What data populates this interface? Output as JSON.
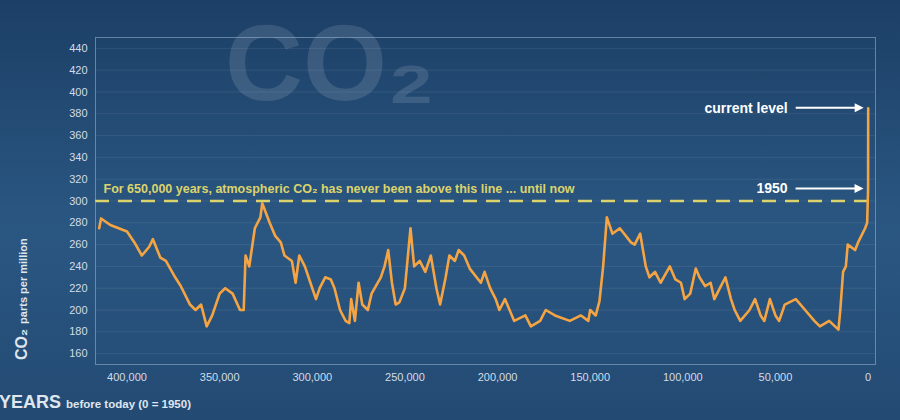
{
  "chart_data": {
    "type": "line",
    "title": "CO₂",
    "x_label": "YEARS before today (0 = 1950)",
    "y_label": "CO₂ parts per million",
    "color": "#f5a443",
    "line_style": "solid",
    "grid": true,
    "xlim": [
      417000,
      -4000
    ],
    "ylim": [
      150,
      450
    ],
    "xticks": [
      {
        "value": 400000,
        "label": "400,000"
      },
      {
        "value": 350000,
        "label": "350,000"
      },
      {
        "value": 300000,
        "label": "300,000"
      },
      {
        "value": 250000,
        "label": "250,000"
      },
      {
        "value": 200000,
        "label": "200,000"
      },
      {
        "value": 150000,
        "label": "150,000"
      },
      {
        "value": 100000,
        "label": "100,000"
      },
      {
        "value": 50000,
        "label": "50,000"
      },
      0
    ],
    "yticks": [
      160,
      180,
      200,
      220,
      240,
      260,
      280,
      300,
      320,
      340,
      360,
      380,
      400,
      420,
      440
    ],
    "x": [
      415000,
      414000,
      409000,
      400000,
      396000,
      392000,
      388000,
      386000,
      382000,
      379000,
      374000,
      371000,
      366000,
      363000,
      360000,
      357000,
      354000,
      350000,
      347000,
      343000,
      339000,
      337000,
      336000,
      334000,
      331000,
      328000,
      327000,
      323000,
      320000,
      317000,
      315000,
      311000,
      309000,
      307000,
      304000,
      301000,
      298000,
      296000,
      293000,
      290000,
      288000,
      285000,
      282000,
      280000,
      279000,
      277000,
      275000,
      273000,
      270000,
      268000,
      263000,
      261000,
      259000,
      257000,
      255000,
      253000,
      250000,
      247000,
      245000,
      242000,
      239000,
      236000,
      233000,
      231000,
      228000,
      226000,
      223000,
      221000,
      218000,
      215000,
      209000,
      207000,
      204000,
      201000,
      199000,
      196000,
      191000,
      185000,
      182000,
      177000,
      174000,
      169000,
      161000,
      155000,
      151000,
      150000,
      147000,
      145000,
      143000,
      141000,
      138000,
      134000,
      128000,
      126000,
      123000,
      120000,
      118000,
      115000,
      112000,
      107000,
      104000,
      101000,
      99000,
      96000,
      93000,
      91000,
      88000,
      85000,
      83000,
      80000,
      77000,
      74000,
      72000,
      69000,
      64000,
      61000,
      58000,
      56000,
      53000,
      50000,
      48000,
      45000,
      39000,
      34000,
      29000,
      26000,
      21000,
      16000,
      15000,
      13500,
      12000,
      11000,
      7000,
      5400,
      1600,
      500,
      0,
      -58
    ],
    "values": [
      275,
      284,
      278,
      272,
      262,
      250,
      258,
      265,
      248,
      245,
      230,
      222,
      205,
      200,
      205,
      185,
      195,
      215,
      220,
      215,
      200,
      200,
      250,
      240,
      275,
      285,
      298,
      280,
      268,
      262,
      250,
      245,
      225,
      250,
      240,
      225,
      210,
      220,
      230,
      228,
      220,
      200,
      190,
      188,
      210,
      190,
      225,
      205,
      200,
      215,
      230,
      240,
      255,
      225,
      205,
      207,
      220,
      275,
      240,
      245,
      235,
      250,
      220,
      205,
      230,
      250,
      245,
      255,
      250,
      238,
      225,
      235,
      220,
      210,
      200,
      210,
      190,
      195,
      185,
      190,
      200,
      195,
      190,
      195,
      190,
      200,
      195,
      208,
      240,
      285,
      270,
      275,
      262,
      260,
      270,
      240,
      230,
      235,
      225,
      240,
      228,
      225,
      210,
      215,
      238,
      230,
      222,
      225,
      210,
      220,
      230,
      210,
      200,
      190,
      200,
      210,
      195,
      190,
      210,
      195,
      190,
      205,
      210,
      200,
      190,
      185,
      190,
      182,
      200,
      235,
      240,
      260,
      255,
      262,
      275,
      280,
      311,
      385
    ],
    "reference_line": {
      "y": 300,
      "text": "For 650,000 years, atmospheric CO₂ has never been above this line ... until now",
      "color": "#dcd36c",
      "line_style": "dashed"
    },
    "annotations": [
      {
        "text": "current level",
        "x": -58
      },
      {
        "text": "1950",
        "x": 0
      }
    ]
  }
}
